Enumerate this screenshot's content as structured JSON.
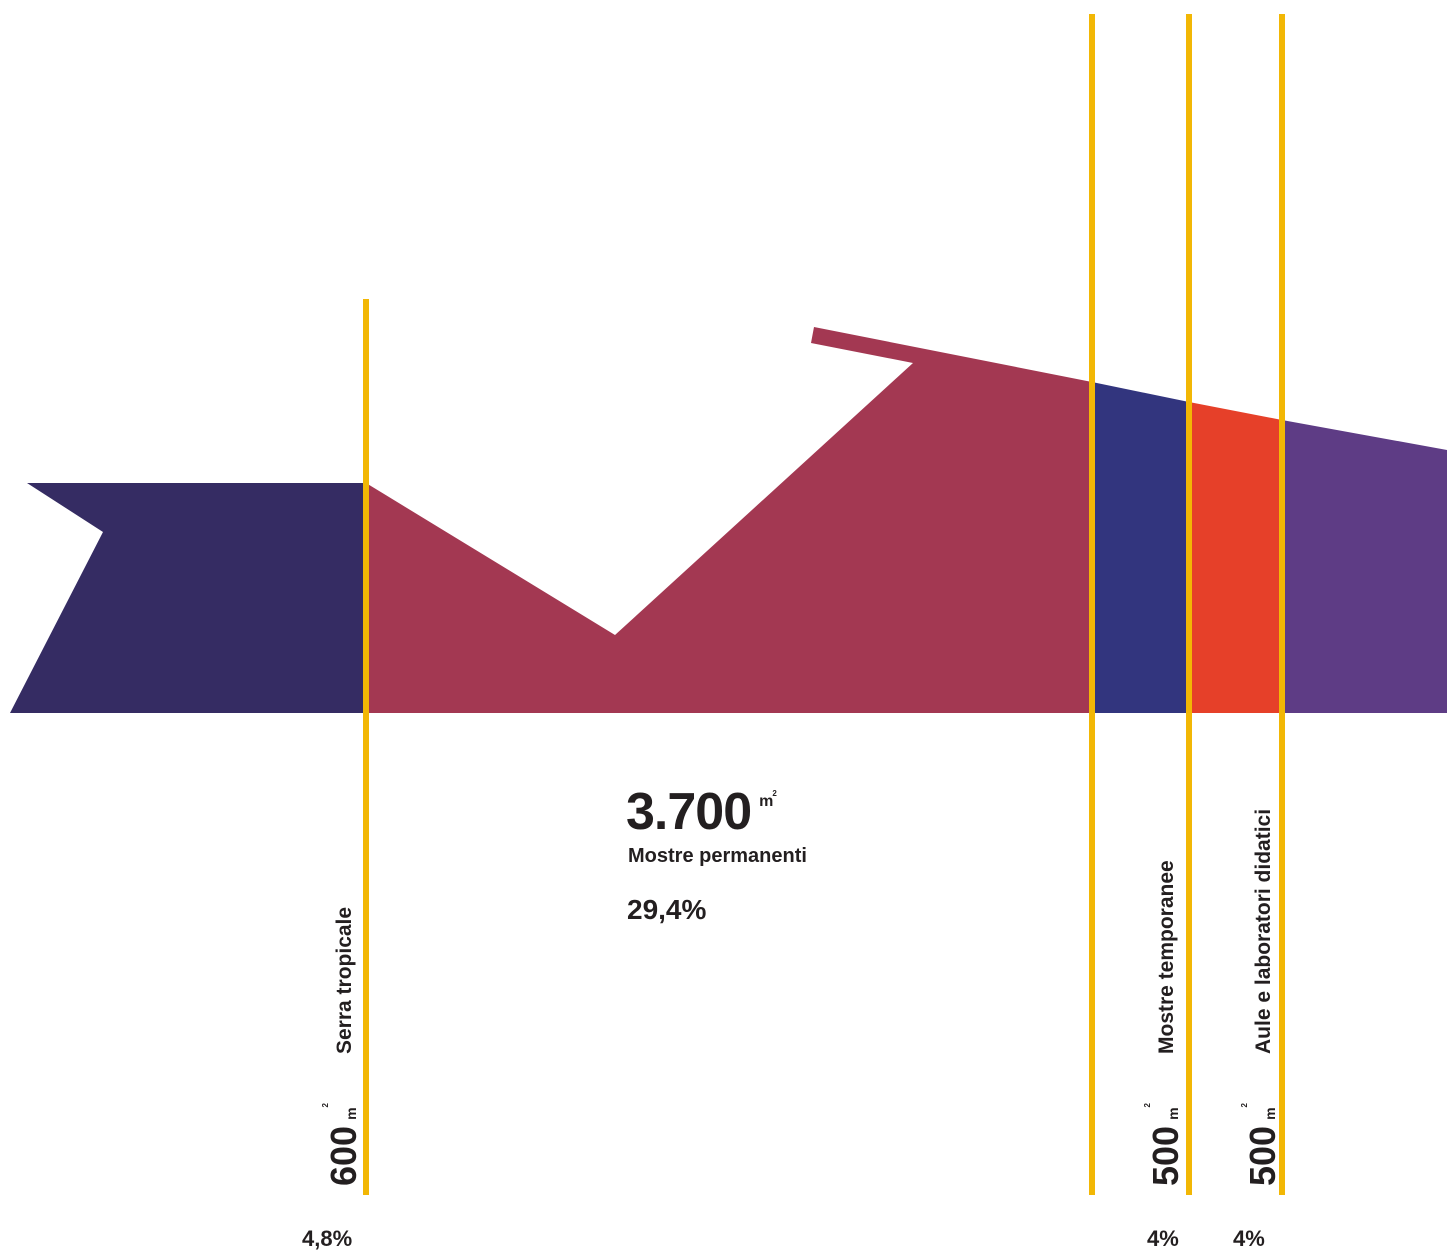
{
  "colors": {
    "serra": "#352c63",
    "permanenti": "#a33852",
    "temporanee": "#32357e",
    "aule": "#e64029",
    "last": "#5e3c85",
    "divider": "#f2b705",
    "text": "#231f20"
  },
  "segments": [
    {
      "id": "serra",
      "value": "600",
      "unit": "m",
      "unit_sup": "2",
      "label": "Serra tropicale",
      "percent": "4,8%"
    },
    {
      "id": "permanenti",
      "value": "3.700",
      "unit": "m",
      "unit_sup": "2",
      "label": "Mostre permanenti",
      "percent": "29,4%"
    },
    {
      "id": "temporanee",
      "value": "500",
      "unit": "m",
      "unit_sup": "2",
      "label": "Mostre temporanee",
      "percent": "4%"
    },
    {
      "id": "aule",
      "value": "500",
      "unit": "m",
      "unit_sup": "2",
      "label": "Aule e laboratori didatici",
      "percent": "4%"
    }
  ]
}
